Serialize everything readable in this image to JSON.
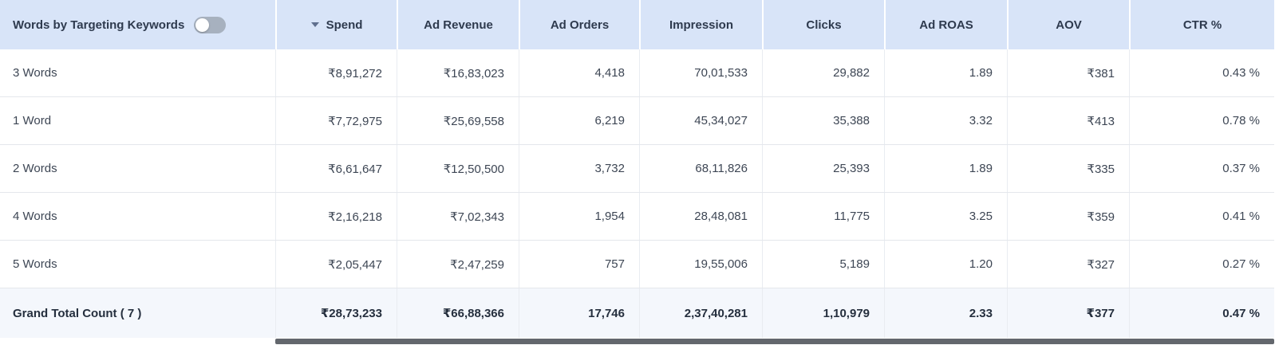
{
  "table": {
    "first_column_header": "Words by Targeting Keywords",
    "toggle": {
      "name": "keywords-toggle",
      "state": "off"
    },
    "sort": {
      "column": "Spend",
      "direction": "desc"
    },
    "columns": [
      "Spend",
      "Ad Revenue",
      "Ad Orders",
      "Impression",
      "Clicks",
      "Ad ROAS",
      "AOV",
      "CTR %"
    ],
    "rows": [
      {
        "label": "3 Words",
        "values": [
          "₹8,91,272",
          "₹16,83,023",
          "4,418",
          "70,01,533",
          "29,882",
          "1.89",
          "₹381",
          "0.43 %"
        ]
      },
      {
        "label": "1 Word",
        "values": [
          "₹7,72,975",
          "₹25,69,558",
          "6,219",
          "45,34,027",
          "35,388",
          "3.32",
          "₹413",
          "0.78 %"
        ]
      },
      {
        "label": "2 Words",
        "values": [
          "₹6,61,647",
          "₹12,50,500",
          "3,732",
          "68,11,826",
          "25,393",
          "1.89",
          "₹335",
          "0.37 %"
        ]
      },
      {
        "label": "4 Words",
        "values": [
          "₹2,16,218",
          "₹7,02,343",
          "1,954",
          "28,48,081",
          "11,775",
          "3.25",
          "₹359",
          "0.41 %"
        ]
      },
      {
        "label": "5 Words",
        "values": [
          "₹2,05,447",
          "₹2,47,259",
          "757",
          "19,55,006",
          "5,189",
          "1.20",
          "₹327",
          "0.27 %"
        ]
      }
    ],
    "total_row": {
      "label": "Grand Total Count ( 7 )",
      "values": [
        "₹28,73,233",
        "₹66,88,366",
        "17,746",
        "2,37,40,281",
        "1,10,979",
        "2.33",
        "₹377",
        "0.47 %"
      ]
    }
  },
  "colors": {
    "header_bg": "#d8e4f8",
    "header_text": "#2e3a4e",
    "row_bg": "#ffffff",
    "total_row_bg": "#f4f7fc",
    "row_border": "#e4e7ec",
    "toggle_off_bg": "#a7b1bf",
    "scrollbar_thumb": "#63676d"
  }
}
